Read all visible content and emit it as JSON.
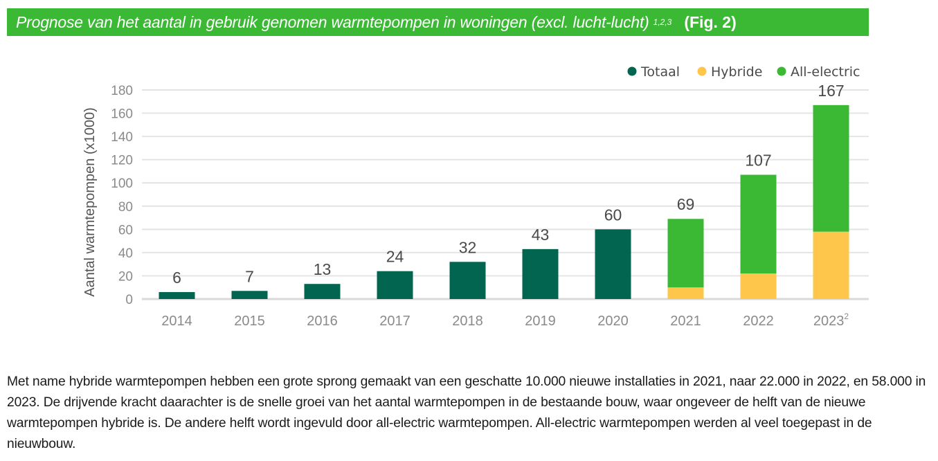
{
  "header": {
    "title": "Prognose van het aantal in gebruik genomen warmtepompen in woningen (excl. lucht-lucht)",
    "title_sup": "1,2,3",
    "fig_label": "(Fig. 2)"
  },
  "chart_data": {
    "type": "bar",
    "stacked": true,
    "title": "Prognose van het aantal in gebruik genomen warmtepompen in woningen (excl. lucht-lucht)",
    "xlabel": "",
    "ylabel": "Aantal warmtepompen (x1000)",
    "ylim": [
      0,
      180
    ],
    "yticks": [
      0,
      20,
      40,
      60,
      80,
      100,
      120,
      140,
      160,
      180
    ],
    "grid": true,
    "legend_position": "top-right",
    "categories": [
      "2014",
      "2015",
      "2016",
      "2017",
      "2018",
      "2019",
      "2020",
      "2021",
      "2022",
      "2023"
    ],
    "category_sups": [
      "",
      "",
      "",
      "",
      "",
      "",
      "",
      "",
      "",
      "2"
    ],
    "series": [
      {
        "name": "Totaal",
        "color": "#02654f",
        "values": [
          6,
          7,
          13,
          24,
          32,
          43,
          60,
          null,
          null,
          null
        ]
      },
      {
        "name": "Hybride",
        "color": "#fec64a",
        "values": [
          null,
          null,
          null,
          null,
          null,
          null,
          null,
          10,
          22,
          58
        ]
      },
      {
        "name": "All-electric",
        "color": "#3bb935",
        "values": [
          null,
          null,
          null,
          null,
          null,
          null,
          null,
          59,
          85,
          109
        ]
      }
    ],
    "data_labels": [
      "6",
      "7",
      "13",
      "24",
      "32",
      "43",
      "60",
      "69",
      "107",
      "167"
    ]
  },
  "paragraph": "Met name hybride warmtepompen hebben een grote sprong gemaakt van een geschatte 10.000 nieuwe installaties in 2021, naar 22.000 in 2022, en 58.000 in 2023. De drijvende kracht daarachter is de snelle groei van het aantal warmtepompen in de bestaande bouw, waar ongeveer de helft van de nieuwe warmtepompen hybride is. De andere helft wordt ingevuld door all-electric warmtepompen. All-electric warmtepompen werden al veel toegepast in de nieuwbouw."
}
